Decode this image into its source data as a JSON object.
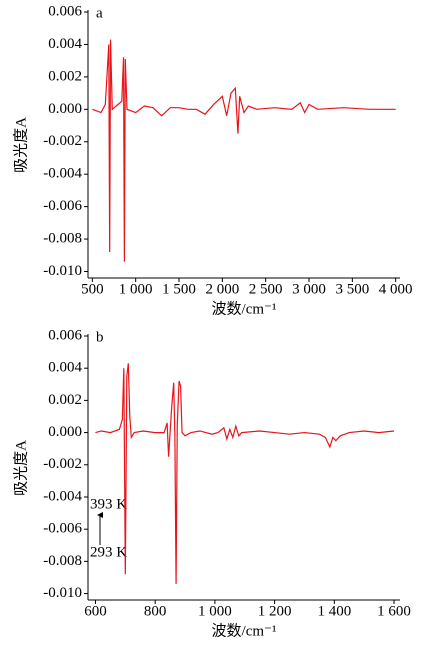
{
  "chart_data": [
    {
      "type": "line",
      "panel_label": "a",
      "x_label": "波数/cm⁻¹",
      "y_label": "吸光度A",
      "x": [
        500,
        600,
        650,
        690,
        700,
        710,
        730,
        840,
        860,
        870,
        880,
        900,
        1000,
        1100,
        1200,
        1300,
        1400,
        1500,
        1600,
        1700,
        1800,
        1900,
        2000,
        2050,
        2100,
        2150,
        2180,
        2200,
        2250,
        2300,
        2400,
        2600,
        2800,
        2900,
        2950,
        3000,
        3100,
        3400,
        3700,
        4000
      ],
      "series": [
        {
          "color": "#e8141a",
          "values": [
            0,
            -0.0002,
            0.0003,
            0.004,
            -0.0088,
            0.0043,
            0,
            0.0005,
            0.0032,
            -0.0094,
            0.0031,
            0,
            -0.0002,
            0.0002,
            0.0001,
            -0.0004,
            0.0001,
            0.0001,
            0,
            0,
            -0.0003,
            0.0003,
            0.0008,
            -0.0004,
            0.001,
            0.0013,
            -0.0015,
            0.0008,
            -0.0002,
            0.0002,
            0,
            0.0001,
            0,
            0.0004,
            -0.0002,
            0.0003,
            0,
            0.0001,
            0,
            0
          ]
        }
      ],
      "xlim": [
        450,
        4050
      ],
      "ylim": [
        -0.0104,
        0.006
      ],
      "xticks": [
        500,
        {
          "value": 1000,
          "label": "1 000"
        },
        {
          "value": 1500,
          "label": "1 500"
        },
        {
          "value": 2000,
          "label": "2 000"
        },
        {
          "value": 2500,
          "label": "2 500"
        },
        {
          "value": 3000,
          "label": "3 000"
        },
        {
          "value": 3500,
          "label": "3 500"
        },
        {
          "value": 4000,
          "label": "4 000"
        }
      ],
      "yticks": [
        0.006,
        0.004,
        0.002,
        {
          "value": 0,
          "label": "0.000"
        },
        -0.002,
        -0.004,
        -0.006,
        -0.008,
        {
          "value": -0.01,
          "label": "-0.010"
        }
      ]
    },
    {
      "type": "line",
      "panel_label": "b",
      "x_label": "波数/cm⁻¹",
      "y_label": "吸光度A",
      "annotations": [
        "393 K",
        "293 K"
      ],
      "x": [
        600,
        620,
        650,
        680,
        690,
        695,
        700,
        705,
        710,
        715,
        720,
        730,
        760,
        800,
        830,
        840,
        845,
        855,
        862,
        866,
        870,
        874,
        880,
        885,
        890,
        900,
        920,
        950,
        990,
        1010,
        1030,
        1040,
        1050,
        1060,
        1070,
        1080,
        1090,
        1150,
        1200,
        1250,
        1300,
        1350,
        1370,
        1385,
        1395,
        1405,
        1420,
        1450,
        1500,
        1550,
        1600
      ],
      "series": [
        {
          "color": "#e8141a",
          "values": [
            0,
            0.0001,
            0,
            0.0002,
            0.0008,
            0.004,
            -0.0088,
            0.0035,
            0.0043,
            0.001,
            -0.0003,
            0,
            0.0001,
            0,
            0,
            0.0006,
            -0.0015,
            0.0015,
            0.0031,
            -0.0002,
            -0.0094,
            0.0005,
            0.0032,
            0.0029,
            0,
            -0.0002,
            0,
            0.0001,
            -0.0001,
            0,
            0.0003,
            -0.0004,
            0.0002,
            -0.0003,
            0.0004,
            -0.0002,
            0,
            0.0001,
            0,
            -0.0001,
            0,
            -0.0001,
            -0.0003,
            -0.0009,
            -0.0003,
            -0.0005,
            -0.0002,
            0,
            0.0001,
            0,
            0.0001
          ]
        }
      ],
      "xlim": [
        575,
        1620
      ],
      "ylim": [
        -0.0104,
        0.006
      ],
      "xticks": [
        600,
        800,
        {
          "value": 1000,
          "label": "1 000"
        },
        {
          "value": 1200,
          "label": "1 200"
        },
        {
          "value": 1400,
          "label": "1 400"
        },
        {
          "value": 1600,
          "label": "1 600"
        }
      ],
      "yticks": [
        0.006,
        0.004,
        0.002,
        {
          "value": 0,
          "label": "0.000"
        },
        -0.002,
        -0.004,
        -0.006,
        -0.008,
        {
          "value": -0.01,
          "label": "-0.010"
        }
      ]
    }
  ]
}
